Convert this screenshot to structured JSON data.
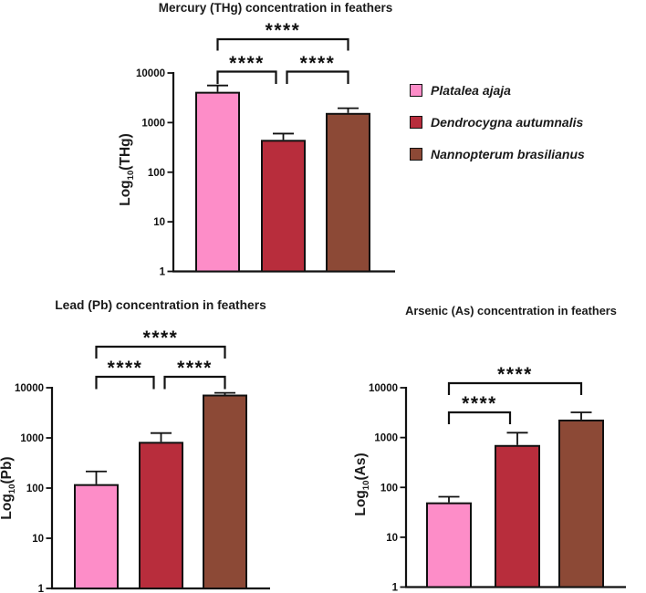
{
  "page": {
    "background": "#ffffff",
    "ink_color": "#111111"
  },
  "legend": {
    "position": "right-of-mercury-chart",
    "items": [
      {
        "label": "Platalea ajaja",
        "color": "#FD8DC8"
      },
      {
        "label": "Dendrocygna autumnalis",
        "color": "#B82D3C"
      },
      {
        "label": "Nannopterum brasilianus",
        "color": "#8C4936"
      }
    ]
  },
  "chart_data": [
    {
      "type": "bar",
      "id": "mercury",
      "title": "Mercury (THg) concentration in feathers",
      "ylabel_prefix": "Log",
      "ylabel_sub": "10",
      "ylabel_suffix": "(THg)",
      "xlabel": "",
      "yscale": "log",
      "ylim": [
        1,
        10000
      ],
      "yticks": [
        10000,
        1000,
        100,
        10,
        1
      ],
      "grid": false,
      "categories": [
        "Platalea ajaja",
        "Dendrocygna autumnalis",
        "Nannopterum brasilianus"
      ],
      "values": [
        4000,
        430,
        1500
      ],
      "error_upper": [
        5600,
        600,
        1950
      ],
      "bar_colors": [
        "#FD8DC8",
        "#B82D3C",
        "#8C4936"
      ],
      "significance": [
        {
          "bars": [
            0,
            1
          ],
          "label": "****",
          "row": 0
        },
        {
          "bars": [
            1,
            2
          ],
          "label": "****",
          "row": 0
        },
        {
          "bars": [
            0,
            2
          ],
          "label": "****",
          "row": 1
        }
      ]
    },
    {
      "type": "bar",
      "id": "lead",
      "title": "Lead (Pb) concentration in feathers",
      "ylabel_prefix": "Log",
      "ylabel_sub": "10",
      "ylabel_suffix": "(Pb)",
      "xlabel": "",
      "yscale": "log",
      "ylim": [
        1,
        10000
      ],
      "yticks": [
        10000,
        1000,
        100,
        10,
        1
      ],
      "grid": false,
      "categories": [
        "Platalea ajaja",
        "Dendrocygna autumnalis",
        "Nannopterum brasilianus"
      ],
      "values": [
        115,
        800,
        7000
      ],
      "error_upper": [
        215,
        1250,
        7900
      ],
      "bar_colors": [
        "#FD8DC8",
        "#B82D3C",
        "#8C4936"
      ],
      "significance": [
        {
          "bars": [
            0,
            1
          ],
          "label": "****",
          "row": 0
        },
        {
          "bars": [
            1,
            2
          ],
          "label": "****",
          "row": 0
        },
        {
          "bars": [
            0,
            2
          ],
          "label": "****",
          "row": 1
        }
      ]
    },
    {
      "type": "bar",
      "id": "arsenic",
      "title": "Arsenic (As) concentration in feathers",
      "ylabel_prefix": "Log",
      "ylabel_sub": "10",
      "ylabel_suffix": "(As)",
      "xlabel": "",
      "yscale": "log",
      "ylim": [
        1,
        10000
      ],
      "yticks": [
        10000,
        1000,
        100,
        10,
        1
      ],
      "grid": false,
      "categories": [
        "Platalea ajaja",
        "Dendrocygna autumnalis",
        "Nannopterum brasilianus"
      ],
      "values": [
        48,
        680,
        2200
      ],
      "error_upper": [
        65,
        1250,
        3200
      ],
      "bar_colors": [
        "#FD8DC8",
        "#B82D3C",
        "#8C4936"
      ],
      "significance": [
        {
          "bars": [
            0,
            1
          ],
          "label": "****",
          "row": 0
        },
        {
          "bars": [
            0,
            2
          ],
          "label": "****",
          "row": 1
        }
      ]
    }
  ]
}
